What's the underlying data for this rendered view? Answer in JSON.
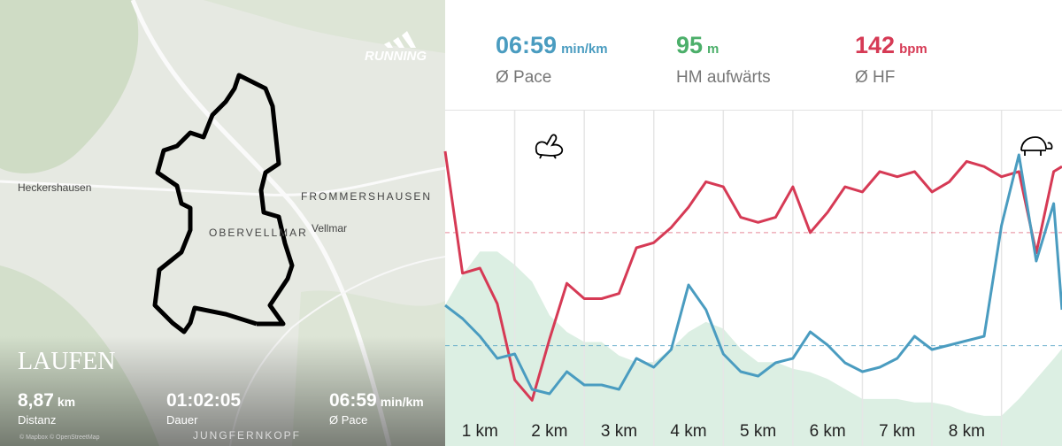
{
  "map": {
    "places": [
      {
        "label": "Heckershausen"
      },
      {
        "label": "FROMMERSHAUSEN"
      },
      {
        "label": "Vellmar"
      },
      {
        "label": "OBERVELLMAR"
      },
      {
        "label": "JUNGFERNKOPF"
      }
    ],
    "attribution": "© Mapbox © OpenStreetMap"
  },
  "map_overlay": {
    "brand": "RUNNING",
    "title": "LAUFEN",
    "stats": [
      {
        "value": "8,87",
        "unit": "km",
        "label": "Distanz"
      },
      {
        "value": "01:02:05",
        "label": "Dauer"
      },
      {
        "value": "06:59",
        "unit": "min/km",
        "label": "Ø Pace"
      }
    ]
  },
  "summary": [
    {
      "value": "06:59",
      "unit": "min/km",
      "label": "Ø Pace",
      "color": "#4a9cc0"
    },
    {
      "value": 95,
      "unit": "m",
      "label": "HM aufwärts",
      "color": "#4caf6a"
    },
    {
      "value": 142,
      "unit": "bpm",
      "label": "Ø HF",
      "color": "#d63a55"
    }
  ],
  "chart_data": {
    "type": "line",
    "x": [
      0,
      0.25,
      0.5,
      0.75,
      1,
      1.25,
      1.5,
      1.75,
      2,
      2.25,
      2.5,
      2.75,
      3,
      3.25,
      3.5,
      3.75,
      4,
      4.25,
      4.5,
      4.75,
      5,
      5.25,
      5.5,
      5.75,
      6,
      6.25,
      6.5,
      6.75,
      7,
      7.25,
      7.5,
      7.75,
      8,
      8.25,
      8.5,
      8.75,
      8.87
    ],
    "xlim": [
      0,
      8.87
    ],
    "xticks": [
      1,
      2,
      3,
      4,
      5,
      6,
      7,
      8
    ],
    "categories": [
      "1 km",
      "2 km",
      "3 km",
      "4 km",
      "5 km",
      "6 km",
      "7 km",
      "8 km"
    ],
    "ylim": [
      100,
      166
    ],
    "y2lim": [
      5.85,
      9.64
    ],
    "y3lim": [
      0,
      100
    ],
    "series": [
      {
        "name": "HM",
        "type": "area",
        "axis": "y3",
        "color": "#dcefe3",
        "values": [
          42,
          51,
          58,
          58,
          54,
          49,
          39,
          34,
          31,
          31,
          27,
          25,
          25,
          29,
          34,
          37,
          35,
          29,
          25,
          25,
          23,
          22,
          20,
          17,
          14,
          14,
          14,
          13,
          13,
          12,
          10,
          9,
          9,
          14,
          20,
          26,
          29
        ]
      },
      {
        "name": "HF",
        "type": "line",
        "color": "#d63a55",
        "values": [
          158,
          134,
          135,
          128,
          113,
          109,
          121,
          132,
          129,
          129,
          130,
          139,
          140,
          143,
          147,
          152,
          151,
          145,
          144,
          145,
          151,
          142,
          146,
          151,
          150,
          154,
          153,
          154,
          150,
          152,
          156,
          155,
          153,
          154,
          138,
          154,
          155
        ]
      },
      {
        "name": "Pace",
        "type": "line",
        "axis": "y2",
        "color": "#4a9cc0",
        "values": [
          7.44,
          7.29,
          7.09,
          6.84,
          6.89,
          6.49,
          6.44,
          6.69,
          6.54,
          6.54,
          6.49,
          6.84,
          6.74,
          6.94,
          7.67,
          7.39,
          6.89,
          6.69,
          6.64,
          6.79,
          6.84,
          7.14,
          6.99,
          6.79,
          6.69,
          6.74,
          6.84,
          7.09,
          6.94,
          6.99,
          7.04,
          7.09,
          8.34,
          9.14,
          7.94,
          8.59,
          7.39
        ]
      }
    ]
  }
}
